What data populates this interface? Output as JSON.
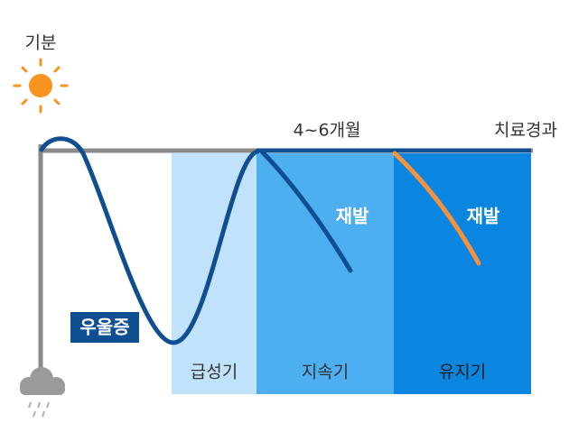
{
  "axis": {
    "y_label": "기분",
    "x_label": "치료경과",
    "duration": "4~6개월"
  },
  "phases": [
    {
      "label": "급성기"
    },
    {
      "label": "지속기"
    },
    {
      "label": "유지기"
    }
  ],
  "annotations": {
    "depression": "우울증",
    "relapse_1": "재발",
    "relapse_2": "재발"
  }
}
